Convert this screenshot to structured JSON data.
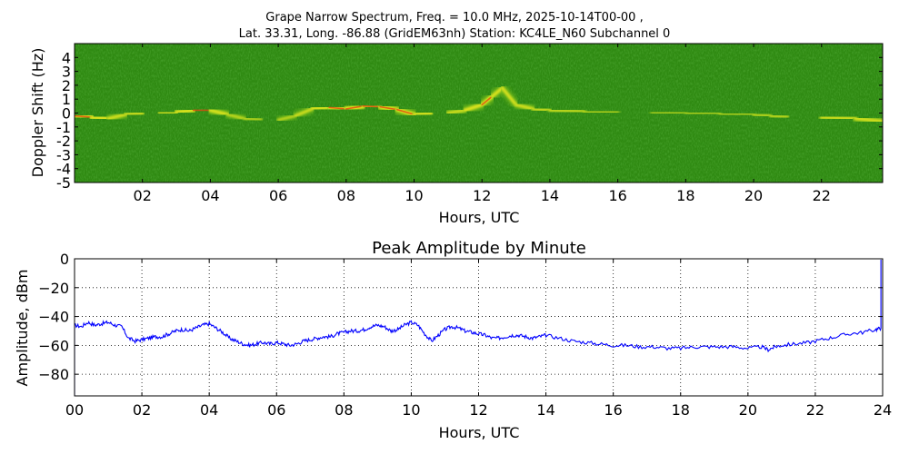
{
  "figure": {
    "title_line1": "Grape Narrow Spectrum, Freq. = 10.0 MHz, 2025-10-14T00-00 ,",
    "title_line2": "Lat.  33.31, Long. -86.88 (GridEM63nh) Station: KC4LE_N60 Subchannel 0"
  },
  "chart_data": [
    {
      "type": "heatmap",
      "title": "",
      "xlabel": "Hours, UTC",
      "ylabel": "Doppler Shift (Hz)",
      "xlim": [
        0,
        23.8
      ],
      "ylim": [
        -5,
        5
      ],
      "x_ticks": [
        2,
        4,
        6,
        8,
        10,
        12,
        14,
        16,
        18,
        20,
        22
      ],
      "x_tick_labels": [
        "02",
        "04",
        "06",
        "08",
        "10",
        "12",
        "14",
        "16",
        "18",
        "20",
        "22"
      ],
      "y_ticks": [
        4,
        3,
        2,
        1,
        0,
        -1,
        -2,
        -3,
        -4,
        -5
      ],
      "y_tick_labels": [
        "4",
        "3",
        "2",
        "1",
        "0",
        "-1",
        "-2",
        "-3",
        "-4",
        "-5"
      ],
      "background_color": "#2f8a12",
      "colors": {
        "weak": "#6fb81a",
        "medium": "#e8e81e",
        "strong": "#e04a10"
      },
      "trace": {
        "hours": [
          0,
          0.5,
          1.0,
          1.5,
          2.0,
          2.5,
          3.0,
          3.5,
          4.0,
          4.5,
          5.0,
          5.5,
          6.0,
          6.5,
          7.0,
          7.5,
          8.0,
          8.5,
          9.0,
          9.5,
          10.0,
          10.5,
          11.0,
          11.5,
          12.0,
          12.3,
          12.6,
          13.0,
          13.5,
          14.0,
          15.0,
          16.0,
          17.0,
          18.0,
          19.0,
          20.0,
          20.5,
          21.0,
          22.0,
          23.0,
          23.8
        ],
        "doppler": [
          -0.2,
          -0.3,
          -0.4,
          -0.1,
          0.0,
          0.0,
          0.05,
          0.2,
          0.2,
          -0.1,
          -0.4,
          -0.5,
          -0.5,
          -0.2,
          0.3,
          0.4,
          0.3,
          0.5,
          0.45,
          0.25,
          -0.1,
          0.0,
          0.0,
          0.2,
          0.6,
          1.2,
          1.8,
          0.6,
          0.3,
          0.2,
          0.1,
          0.05,
          0.05,
          0.0,
          -0.05,
          -0.1,
          -0.2,
          -0.3,
          -0.3,
          -0.4,
          -0.6
        ],
        "intensity": [
          0.9,
          0.9,
          0.7,
          0.5,
          0.6,
          0.6,
          0.7,
          0.85,
          0.9,
          0.5,
          0.3,
          0.3,
          0.3,
          0.4,
          0.7,
          0.75,
          0.9,
          0.95,
          0.9,
          0.8,
          0.9,
          0.5,
          0.5,
          0.6,
          0.9,
          0.8,
          0.6,
          0.7,
          0.5,
          0.5,
          0.4,
          0.4,
          0.35,
          0.35,
          0.35,
          0.4,
          0.3,
          0.5,
          0.6,
          0.6,
          0.7
        ]
      }
    },
    {
      "type": "line",
      "title": "Peak Amplitude by Minute",
      "xlabel": "Hours, UTC",
      "ylabel": "Amplitude, dBm",
      "xlim": [
        0,
        24
      ],
      "ylim": [
        -95,
        0
      ],
      "grid": true,
      "x_ticks": [
        0,
        2,
        4,
        6,
        8,
        10,
        12,
        14,
        16,
        18,
        20,
        22,
        24
      ],
      "x_tick_labels": [
        "00",
        "02",
        "04",
        "06",
        "08",
        "10",
        "12",
        "14",
        "16",
        "18",
        "20",
        "22",
        "24"
      ],
      "y_ticks": [
        0,
        -20,
        -40,
        -60,
        -80
      ],
      "y_tick_labels": [
        "0",
        "−20",
        "−40",
        "−60",
        "−80"
      ],
      "line_color": "#0000ff",
      "x": [
        0.0,
        0.2,
        0.4,
        0.6,
        0.8,
        1.0,
        1.2,
        1.4,
        1.6,
        1.8,
        2.0,
        2.2,
        2.4,
        2.6,
        2.8,
        3.0,
        3.2,
        3.4,
        3.6,
        3.8,
        4.0,
        4.2,
        4.4,
        4.6,
        4.8,
        5.0,
        5.2,
        5.4,
        5.6,
        5.8,
        6.0,
        6.2,
        6.4,
        6.6,
        6.8,
        7.0,
        7.2,
        7.4,
        7.6,
        7.8,
        8.0,
        8.2,
        8.4,
        8.6,
        8.8,
        9.0,
        9.2,
        9.4,
        9.6,
        9.8,
        10.0,
        10.2,
        10.4,
        10.6,
        10.8,
        11.0,
        11.2,
        11.4,
        11.6,
        11.8,
        12.0,
        12.2,
        12.4,
        12.6,
        12.8,
        13.0,
        13.2,
        13.4,
        13.6,
        13.8,
        14.0,
        14.4,
        14.8,
        15.2,
        15.6,
        16.0,
        16.4,
        16.8,
        17.2,
        17.6,
        18.0,
        18.4,
        18.8,
        19.2,
        19.6,
        20.0,
        20.4,
        20.6,
        20.8,
        21.0,
        21.4,
        21.8,
        22.2,
        22.6,
        23.0,
        23.4,
        23.8,
        23.95
      ],
      "y": [
        -46,
        -47,
        -44,
        -46,
        -45,
        -44,
        -46,
        -47,
        -55,
        -57,
        -56,
        -55,
        -54,
        -54,
        -52,
        -50,
        -49,
        -50,
        -48,
        -46,
        -45,
        -48,
        -51,
        -55,
        -57,
        -59,
        -60,
        -59,
        -58,
        -59,
        -58,
        -59,
        -60,
        -59,
        -57,
        -56,
        -55,
        -54,
        -54,
        -52,
        -51,
        -50,
        -50,
        -49,
        -47,
        -46,
        -47,
        -50,
        -49,
        -46,
        -44,
        -46,
        -52,
        -57,
        -53,
        -49,
        -47,
        -48,
        -50,
        -51,
        -52,
        -53,
        -55,
        -55,
        -54,
        -53,
        -53,
        -54,
        -55,
        -54,
        -53,
        -55,
        -57,
        -58,
        -59,
        -60,
        -60,
        -61,
        -61,
        -62,
        -62,
        -61,
        -61,
        -61,
        -61,
        -62,
        -61,
        -63,
        -61,
        -60,
        -59,
        -58,
        -56,
        -54,
        -52,
        -51,
        -49,
        -48
      ]
    }
  ]
}
